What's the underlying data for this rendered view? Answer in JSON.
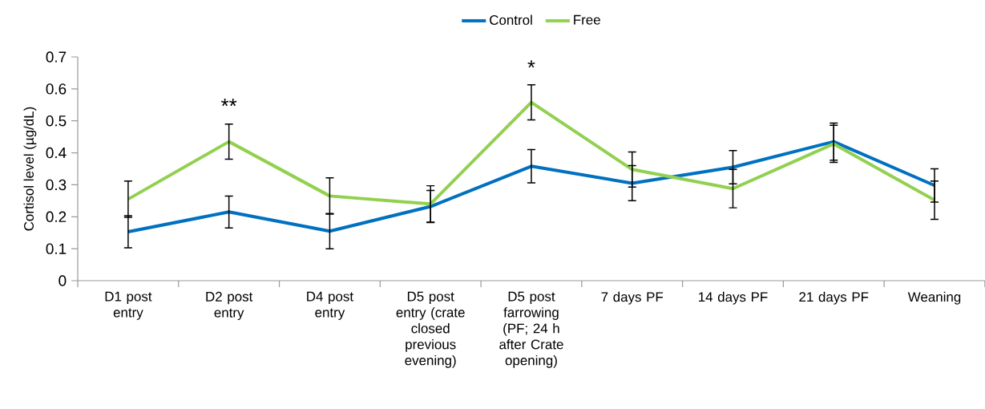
{
  "chart_data": {
    "type": "line",
    "ylabel": "Cortisol level (µg/dL)",
    "categories": [
      "D1 post entry",
      "D2 post entry",
      "D4 post entry",
      "D5 post entry (crate closed previous evening)",
      "D5 post farrowing (PF;  24 h after Crate opening)",
      "7 days PF",
      "14 days PF",
      "21 days PF",
      "Weaning"
    ],
    "series": [
      {
        "name": "Control",
        "color": "#0070c0",
        "values": [
          0.153,
          0.215,
          0.155,
          0.232,
          0.358,
          0.305,
          0.355,
          0.435,
          0.298
        ],
        "errors": [
          0.05,
          0.05,
          0.055,
          0.05,
          0.052,
          0.055,
          0.052,
          0.058,
          0.052
        ]
      },
      {
        "name": "Free",
        "color": "#92d050",
        "values": [
          0.255,
          0.435,
          0.265,
          0.24,
          0.558,
          0.348,
          0.288,
          0.428,
          0.252
        ],
        "errors": [
          0.057,
          0.055,
          0.057,
          0.057,
          0.055,
          0.055,
          0.06,
          0.058,
          0.06
        ]
      }
    ],
    "ylim": [
      0,
      0.7
    ],
    "yticks": [
      0,
      0.1,
      0.2,
      0.3,
      0.4,
      0.5,
      0.6,
      0.7
    ],
    "legend": "top",
    "grid": false,
    "marker": "none",
    "line_style": "solid",
    "annotations": [
      "**",
      "*"
    ]
  }
}
